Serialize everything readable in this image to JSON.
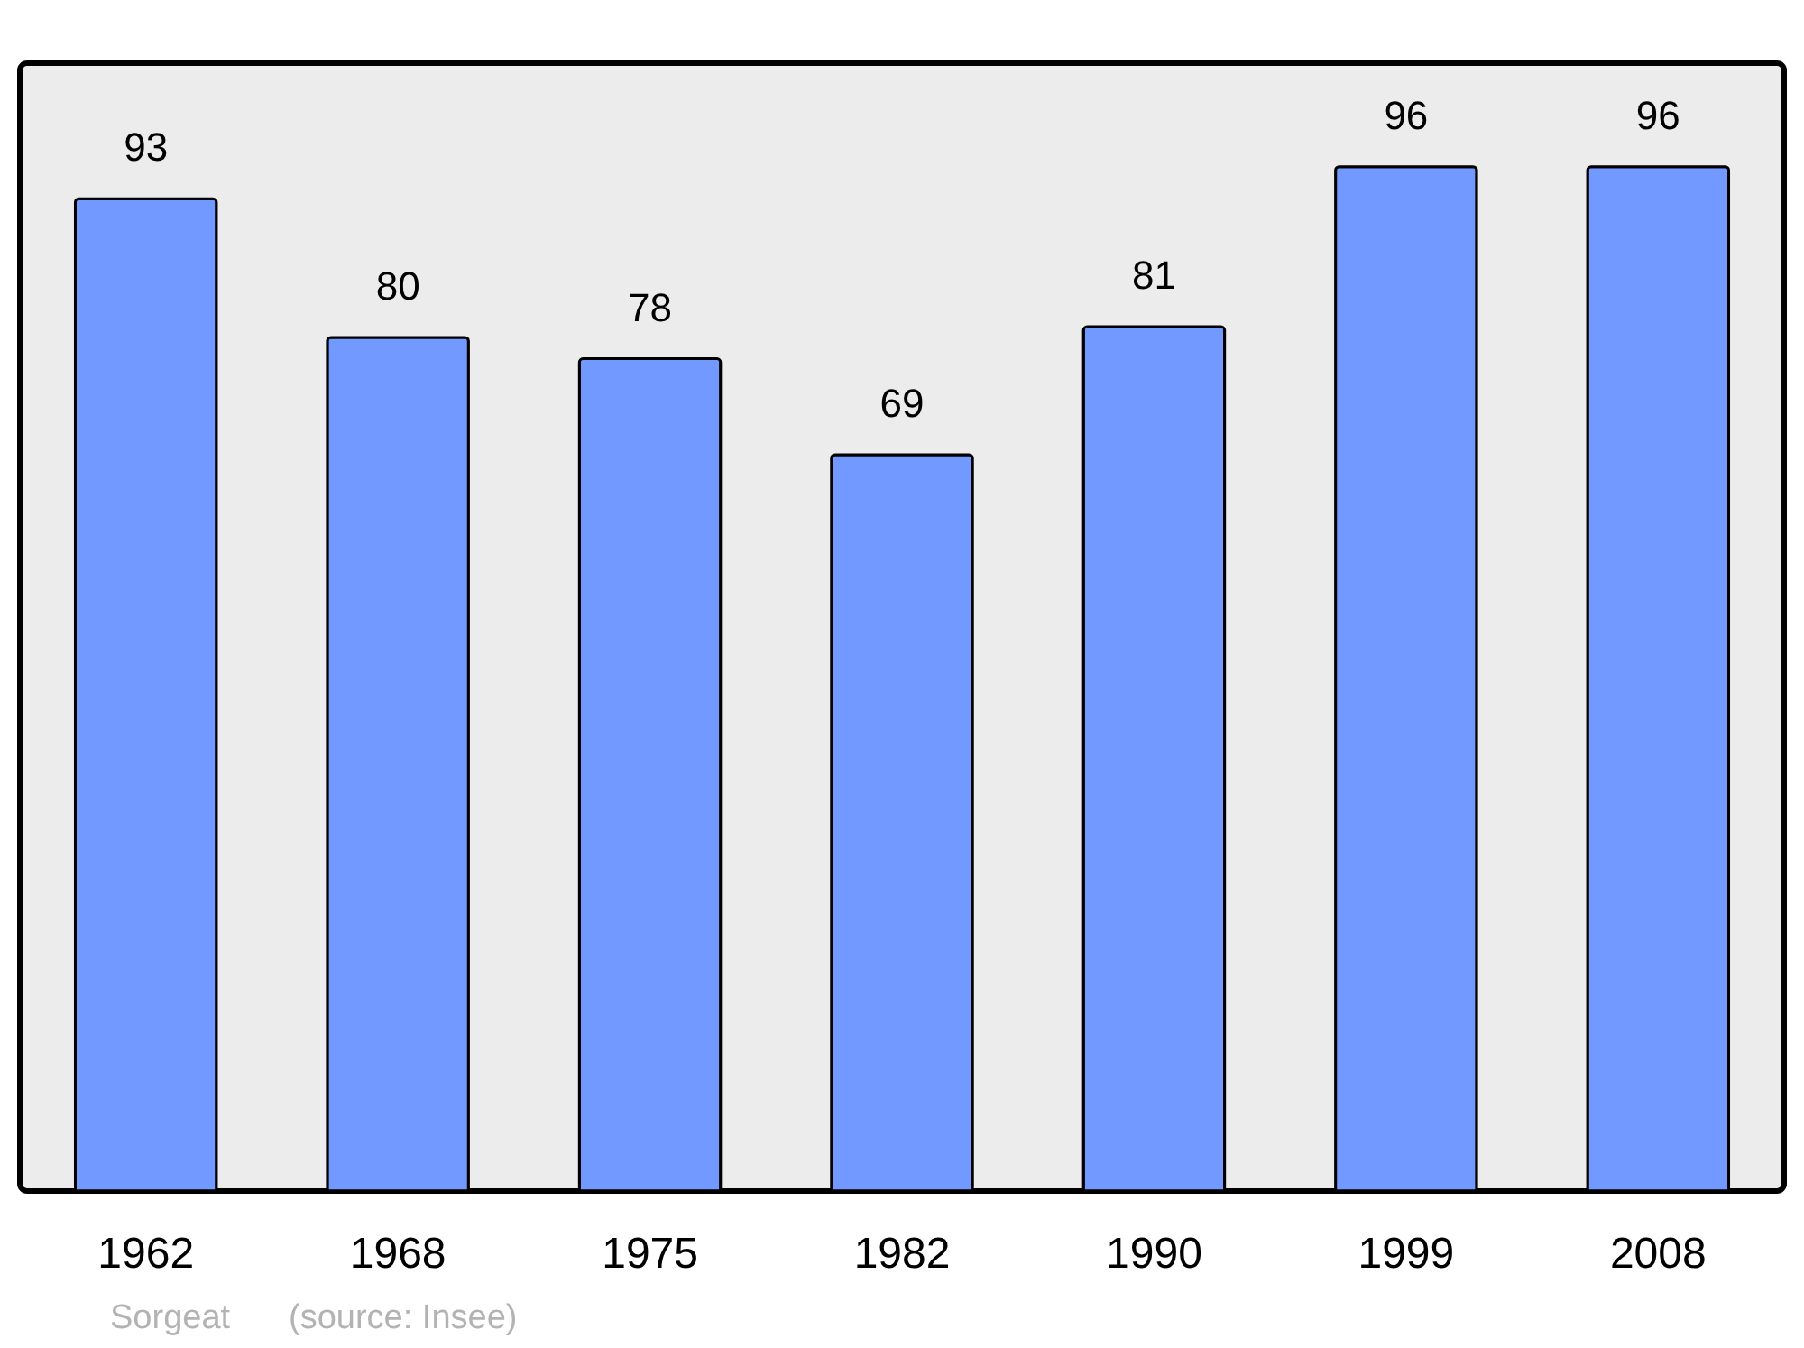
{
  "chart_data": {
    "type": "bar",
    "categories": [
      "1962",
      "1968",
      "1975",
      "1982",
      "1990",
      "1999",
      "2008"
    ],
    "values": [
      93,
      80,
      78,
      69,
      81,
      96,
      96
    ],
    "color": "#7299ff",
    "data_labels": true,
    "ylim": [
      0,
      105.7
    ],
    "tick_labels": "x",
    "annotations": [
      "Sorgeat",
      "(source: Insee)"
    ]
  }
}
